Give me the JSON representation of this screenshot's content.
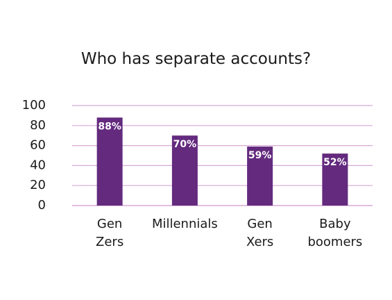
{
  "chart_data": {
    "type": "bar",
    "title": "Who has separate accounts?",
    "categories": [
      [
        "Gen",
        "Zers"
      ],
      [
        "Millennials"
      ],
      [
        "Gen",
        "Xers"
      ],
      [
        "Baby",
        "boomers"
      ]
    ],
    "values": [
      88,
      70,
      59,
      52
    ],
    "data_labels": [
      "88%",
      "70%",
      "59%",
      "52%"
    ],
    "yticks": [
      "0",
      "20",
      "40",
      "60",
      "80",
      "100"
    ],
    "ylim": [
      0,
      100
    ],
    "grid": true,
    "bar_color": "#632a7e",
    "grid_color": "#d8a8d8",
    "xlabel": "",
    "ylabel": ""
  }
}
